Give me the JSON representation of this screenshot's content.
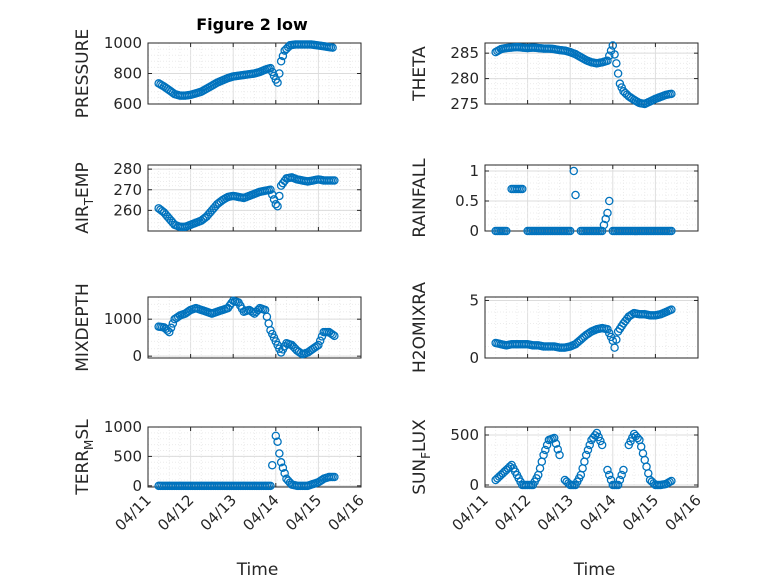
{
  "figure": {
    "title": "Figure 2 low",
    "marker_color": "#0072BD",
    "grid": true
  },
  "chart_data": [
    {
      "type": "scatter",
      "position": "row1-left",
      "title": "Figure 2 low",
      "ylabel": "PRESSURE",
      "ylabel_sub": "",
      "ylabel_tail": "",
      "xlabel": "",
      "ylim": [
        600,
        1000
      ],
      "yticks": [
        600,
        800,
        1000
      ],
      "yticklabels": [
        "600",
        "800",
        "1000"
      ],
      "xlim": [
        "04/11",
        "04/16"
      ],
      "xticklabels": [],
      "x": [
        "04/11 06:00",
        "04/11 09:00",
        "04/11 12:00",
        "04/11 15:00",
        "04/11 18:00",
        "04/11 21:00",
        "04/12 00:00",
        "04/12 03:00",
        "04/12 06:00",
        "04/12 09:00",
        "04/12 12:00",
        "04/12 15:00",
        "04/12 18:00",
        "04/12 21:00",
        "04/13 00:00",
        "04/13 03:00",
        "04/13 06:00",
        "04/13 09:00",
        "04/13 12:00",
        "04/13 15:00",
        "04/13 18:00",
        "04/13 21:00",
        "04/14 00:00",
        "04/14 01:00",
        "04/14 02:00",
        "04/14 03:00",
        "04/14 05:00",
        "04/14 08:00",
        "04/14 11:00",
        "04/14 14:00",
        "04/14 17:00",
        "04/14 20:00",
        "04/14 23:00",
        "04/15 02:00",
        "04/15 05:00",
        "04/15 08:00"
      ],
      "series": [
        {
          "values": [
            735,
            715,
            690,
            665,
            655,
            655,
            660,
            670,
            680,
            700,
            720,
            740,
            755,
            770,
            780,
            785,
            790,
            795,
            800,
            810,
            825,
            835,
            760,
            740,
            800,
            880,
            950,
            985,
            990,
            990,
            990,
            990,
            985,
            980,
            975,
            970
          ]
        }
      ]
    },
    {
      "type": "scatter",
      "position": "row1-right",
      "ylabel": "THETA",
      "ylabel_sub": "",
      "ylabel_tail": "",
      "xlabel": "",
      "ylim": [
        275,
        287
      ],
      "yticks": [
        275,
        280,
        285
      ],
      "yticklabels": [
        "275",
        "280",
        "285"
      ],
      "xlim": [
        "04/11",
        "04/16"
      ],
      "xticklabels": [],
      "x": [
        "04/11 06:00",
        "04/11 09:00",
        "04/11 12:00",
        "04/11 15:00",
        "04/11 18:00",
        "04/11 21:00",
        "04/12 00:00",
        "04/12 03:00",
        "04/12 06:00",
        "04/12 09:00",
        "04/12 12:00",
        "04/12 15:00",
        "04/12 18:00",
        "04/12 21:00",
        "04/13 00:00",
        "04/13 03:00",
        "04/13 06:00",
        "04/13 09:00",
        "04/13 12:00",
        "04/13 15:00",
        "04/13 18:00",
        "04/13 21:00",
        "04/14 00:00",
        "04/14 02:00",
        "04/14 04:00",
        "04/14 06:00",
        "04/14 09:00",
        "04/14 12:00",
        "04/14 15:00",
        "04/14 18:00",
        "04/14 21:00",
        "04/15 00:00",
        "04/15 03:00",
        "04/15 06:00",
        "04/15 09:00"
      ],
      "series": [
        {
          "values": [
            285.2,
            285.8,
            286.0,
            286.1,
            286.2,
            286.1,
            286.0,
            286.1,
            286.0,
            285.9,
            285.9,
            285.8,
            285.6,
            285.5,
            285.2,
            284.8,
            284.2,
            283.6,
            283.2,
            283.0,
            283.2,
            283.5,
            286.5,
            283.0,
            279.0,
            277.5,
            276.5,
            275.8,
            275.2,
            275.0,
            275.5,
            276.0,
            276.4,
            276.8,
            277.0
          ]
        }
      ]
    },
    {
      "type": "scatter",
      "position": "row2-left",
      "ylabel": "AIR",
      "ylabel_sub": "T",
      "ylabel_tail": "EMP",
      "xlabel": "",
      "ylim": [
        250,
        282
      ],
      "yticks": [
        260,
        270,
        280
      ],
      "yticklabels": [
        "260",
        "270",
        "280"
      ],
      "xlim": [
        "04/11",
        "04/16"
      ],
      "xticklabels": [],
      "x": [
        "04/11 06:00",
        "04/11 09:00",
        "04/11 12:00",
        "04/11 15:00",
        "04/11 18:00",
        "04/11 21:00",
        "04/12 00:00",
        "04/12 03:00",
        "04/12 06:00",
        "04/12 09:00",
        "04/12 12:00",
        "04/12 15:00",
        "04/12 18:00",
        "04/12 21:00",
        "04/13 00:00",
        "04/13 03:00",
        "04/13 06:00",
        "04/13 09:00",
        "04/13 12:00",
        "04/13 15:00",
        "04/13 18:00",
        "04/13 21:00",
        "04/14 00:00",
        "04/14 01:00",
        "04/14 03:00",
        "04/14 06:00",
        "04/14 09:00",
        "04/14 12:00",
        "04/14 15:00",
        "04/14 18:00",
        "04/14 21:00",
        "04/15 00:00",
        "04/15 03:00",
        "04/15 06:00",
        "04/15 09:00"
      ],
      "series": [
        {
          "values": [
            261,
            259,
            256,
            253,
            252,
            252,
            253,
            254,
            255,
            257,
            260,
            263,
            265,
            266.5,
            267,
            266.5,
            266,
            267,
            268,
            269,
            269.5,
            270,
            263,
            262,
            272,
            275.5,
            276,
            275,
            274.5,
            274,
            274.5,
            275,
            274.5,
            274.5,
            274.5
          ]
        }
      ]
    },
    {
      "type": "scatter",
      "position": "row2-right",
      "ylabel": "RAINFALL",
      "ylabel_sub": "",
      "ylabel_tail": "",
      "xlabel": "",
      "ylim": [
        0,
        1.1
      ],
      "yticks": [
        0,
        0.5,
        1
      ],
      "yticklabels": [
        "0",
        "0.5",
        "1"
      ],
      "xlim": [
        "04/11",
        "04/16"
      ],
      "xticklabels": [],
      "x": [
        "04/11 06:00",
        "04/11 09:00",
        "04/11 12:00",
        "04/11 15:00",
        "04/11 18:00",
        "04/11 21:00",
        "04/12 00:00",
        "04/12 03:00",
        "04/12 06:00",
        "04/12 09:00",
        "04/12 12:00",
        "04/12 15:00",
        "04/12 18:00",
        "04/12 21:00",
        "04/13 00:00",
        "04/13 02:00",
        "04/13 03:00",
        "04/13 06:00",
        "04/13 09:00",
        "04/13 12:00",
        "04/13 15:00",
        "04/13 18:00",
        "04/13 21:00",
        "04/13 22:00",
        "04/14 00:00",
        "04/14 03:00",
        "04/14 06:00",
        "04/14 09:00",
        "04/14 12:00",
        "04/14 15:00",
        "04/14 18:00",
        "04/14 21:00",
        "04/15 00:00",
        "04/15 03:00",
        "04/15 06:00",
        "04/15 09:00"
      ],
      "series": [
        {
          "values": [
            0,
            0,
            0,
            0.7,
            0.7,
            0.7,
            0,
            0,
            0,
            0,
            0,
            0,
            0,
            0,
            0,
            1.0,
            0.6,
            0,
            0,
            0,
            0,
            0,
            0.3,
            0.5,
            0,
            0,
            0,
            0,
            0,
            0,
            0,
            0,
            0,
            0,
            0,
            0
          ]
        }
      ]
    },
    {
      "type": "scatter",
      "position": "row3-left",
      "ylabel": "MIXDEPTH",
      "ylabel_sub": "",
      "ylabel_tail": "",
      "xlabel": "",
      "ylim": [
        -50,
        1600
      ],
      "yticks": [
        0,
        1000
      ],
      "yticklabels": [
        "0",
        "1000"
      ],
      "xlim": [
        "04/11",
        "04/16"
      ],
      "xticklabels": [],
      "x": [
        "04/11 06:00",
        "04/11 09:00",
        "04/11 12:00",
        "04/11 15:00",
        "04/11 18:00",
        "04/11 21:00",
        "04/12 00:00",
        "04/12 03:00",
        "04/12 06:00",
        "04/12 09:00",
        "04/12 12:00",
        "04/12 15:00",
        "04/12 18:00",
        "04/12 21:00",
        "04/13 00:00",
        "04/13 03:00",
        "04/13 06:00",
        "04/13 09:00",
        "04/13 12:00",
        "04/13 15:00",
        "04/13 18:00",
        "04/13 21:00",
        "04/14 00:00",
        "04/14 03:00",
        "04/14 06:00",
        "04/14 09:00",
        "04/14 12:00",
        "04/14 15:00",
        "04/14 18:00",
        "04/14 21:00",
        "04/15 00:00",
        "04/15 03:00",
        "04/15 06:00",
        "04/15 09:00"
      ],
      "series": [
        {
          "values": [
            800,
            780,
            650,
            1000,
            1100,
            1150,
            1250,
            1300,
            1250,
            1200,
            1150,
            1200,
            1250,
            1300,
            1500,
            1450,
            1200,
            1250,
            1150,
            1300,
            1250,
            700,
            400,
            100,
            350,
            300,
            150,
            50,
            100,
            200,
            300,
            650,
            650,
            550
          ]
        }
      ]
    },
    {
      "type": "scatter",
      "position": "row3-right",
      "ylabel": "H2OMIXRA",
      "ylabel_sub": "",
      "ylabel_tail": "",
      "xlabel": "",
      "ylim": [
        0,
        5.3
      ],
      "yticks": [
        0,
        5
      ],
      "yticklabels": [
        "0",
        "5"
      ],
      "xlim": [
        "04/11",
        "04/16"
      ],
      "xticklabels": [],
      "x": [
        "04/11 06:00",
        "04/11 09:00",
        "04/11 12:00",
        "04/11 15:00",
        "04/11 18:00",
        "04/11 21:00",
        "04/12 00:00",
        "04/12 03:00",
        "04/12 06:00",
        "04/12 09:00",
        "04/12 12:00",
        "04/12 15:00",
        "04/12 18:00",
        "04/12 21:00",
        "04/13 00:00",
        "04/13 03:00",
        "04/13 06:00",
        "04/13 09:00",
        "04/13 12:00",
        "04/13 15:00",
        "04/13 18:00",
        "04/13 21:00",
        "04/14 00:00",
        "04/14 01:00",
        "04/14 03:00",
        "04/14 06:00",
        "04/14 09:00",
        "04/14 12:00",
        "04/14 15:00",
        "04/14 18:00",
        "04/14 21:00",
        "04/15 00:00",
        "04/15 03:00",
        "04/15 06:00",
        "04/15 09:00"
      ],
      "series": [
        {
          "values": [
            1.3,
            1.2,
            1.1,
            1.2,
            1.2,
            1.2,
            1.2,
            1.1,
            1.1,
            1.0,
            1.0,
            1.0,
            0.9,
            0.9,
            1.0,
            1.2,
            1.6,
            2.0,
            2.3,
            2.5,
            2.6,
            2.5,
            1.5,
            0.9,
            2.3,
            3.0,
            3.6,
            3.9,
            3.8,
            3.8,
            3.7,
            3.7,
            3.8,
            4.0,
            4.2
          ]
        }
      ]
    },
    {
      "type": "scatter",
      "position": "row4-left",
      "ylabel": "TERR",
      "ylabel_sub": "M",
      "ylabel_tail": "SL",
      "xlabel": "Time",
      "ylim": [
        -20,
        1000
      ],
      "yticks": [
        0,
        500,
        1000
      ],
      "yticklabels": [
        "0",
        "500",
        "1000"
      ],
      "xlim": [
        "04/11",
        "04/16"
      ],
      "xticklabels": [
        "04/11",
        "04/12",
        "04/13",
        "04/14",
        "04/15",
        "04/16"
      ],
      "x": [
        "04/11 06:00",
        "04/11 09:00",
        "04/11 12:00",
        "04/11 15:00",
        "04/11 18:00",
        "04/11 21:00",
        "04/12 00:00",
        "04/12 03:00",
        "04/12 06:00",
        "04/12 09:00",
        "04/12 12:00",
        "04/12 15:00",
        "04/12 18:00",
        "04/12 21:00",
        "04/13 00:00",
        "04/13 03:00",
        "04/13 06:00",
        "04/13 09:00",
        "04/13 12:00",
        "04/13 15:00",
        "04/13 18:00",
        "04/13 21:00",
        "04/13 22:00",
        "04/14 00:00",
        "04/14 01:00",
        "04/14 02:00",
        "04/14 03:00",
        "04/14 06:00",
        "04/14 09:00",
        "04/14 12:00",
        "04/14 15:00",
        "04/14 18:00",
        "04/14 21:00",
        "04/15 00:00",
        "04/15 03:00",
        "04/15 06:00",
        "04/15 09:00"
      ],
      "series": [
        {
          "values": [
            0,
            0,
            0,
            0,
            0,
            0,
            0,
            0,
            0,
            0,
            0,
            0,
            0,
            0,
            0,
            0,
            0,
            0,
            0,
            0,
            0,
            0,
            350,
            850,
            750,
            550,
            400,
            120,
            20,
            0,
            0,
            0,
            30,
            60,
            120,
            150,
            150
          ]
        }
      ]
    },
    {
      "type": "scatter",
      "position": "row4-right",
      "ylabel": "SUN",
      "ylabel_sub": "F",
      "ylabel_tail": "LUX",
      "xlabel": "Time",
      "ylim": [
        -20,
        580
      ],
      "yticks": [
        0,
        500
      ],
      "yticklabels": [
        "0",
        "500"
      ],
      "xlim": [
        "04/11",
        "04/16"
      ],
      "xticklabels": [
        "04/11",
        "04/12",
        "04/13",
        "04/14",
        "04/15",
        "04/16"
      ],
      "x": [
        "04/11 06:00",
        "04/11 09:00",
        "04/11 12:00",
        "04/11 15:00",
        "04/11 18:00",
        "04/11 21:00",
        "04/12 00:00",
        "04/12 03:00",
        "04/12 06:00",
        "04/12 09:00",
        "04/12 12:00",
        "04/12 15:00",
        "04/12 18:00",
        "04/12 21:00",
        "04/13 00:00",
        "04/13 03:00",
        "04/13 06:00",
        "04/13 09:00",
        "04/13 12:00",
        "04/13 15:00",
        "04/13 18:00",
        "04/13 21:00",
        "04/14 00:00",
        "04/14 03:00",
        "04/14 06:00",
        "04/14 09:00",
        "04/14 12:00",
        "04/14 15:00",
        "04/14 18:00",
        "04/14 21:00",
        "04/15 00:00",
        "04/15 03:00",
        "04/15 06:00",
        "04/15 09:00"
      ],
      "series": [
        {
          "values": [
            50,
            100,
            150,
            200,
            100,
            0,
            0,
            0,
            100,
            300,
            450,
            470,
            300,
            50,
            0,
            0,
            100,
            300,
            450,
            520,
            400,
            150,
            0,
            0,
            150,
            400,
            510,
            450,
            250,
            50,
            0,
            0,
            10,
            40
          ]
        }
      ]
    }
  ]
}
